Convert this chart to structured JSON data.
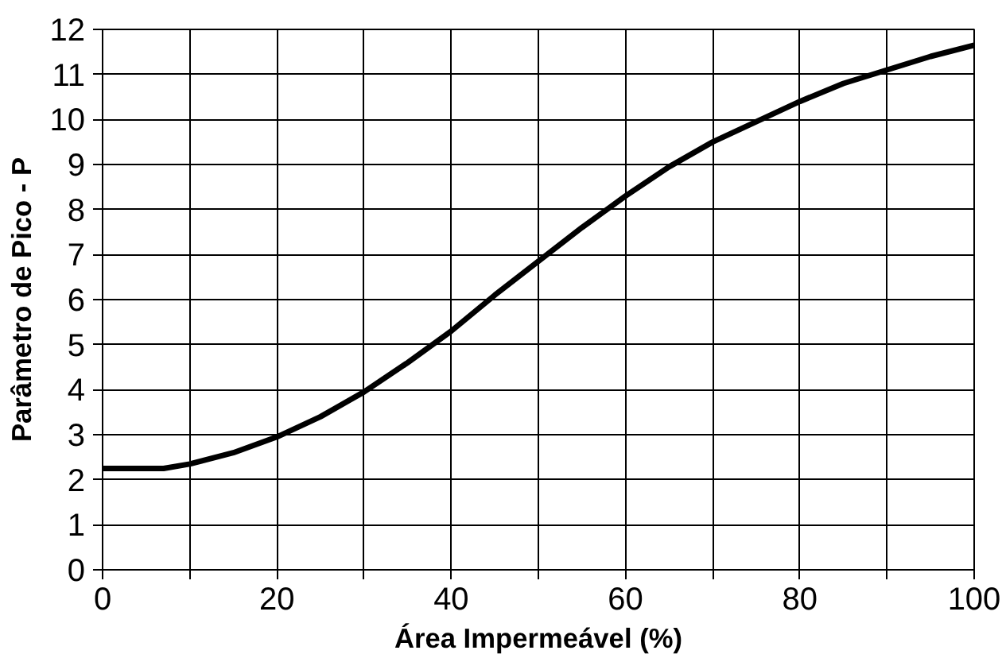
{
  "chart_data": {
    "type": "line",
    "xlabel": "Área Impermeável (%)",
    "ylabel": "Parâmetro de Pico - P",
    "x": [
      0,
      5,
      7,
      10,
      15,
      20,
      25,
      30,
      35,
      40,
      45,
      50,
      55,
      60,
      65,
      70,
      75,
      80,
      85,
      90,
      95,
      100
    ],
    "series": [
      {
        "color": "#000000",
        "values": [
          2.25,
          2.25,
          2.25,
          2.35,
          2.6,
          2.95,
          3.4,
          3.95,
          4.6,
          5.3,
          6.1,
          6.85,
          7.6,
          8.3,
          8.95,
          9.5,
          9.95,
          10.4,
          10.8,
          11.1,
          11.4,
          11.65
        ]
      }
    ],
    "xlim": [
      0,
      100
    ],
    "ylim": [
      0,
      12
    ],
    "xticks": [
      0,
      {
        "value": 10,
        "label": null
      },
      20,
      {
        "value": 30,
        "label": null
      },
      40,
      {
        "value": 50,
        "label": null
      },
      60,
      {
        "value": 70,
        "label": null
      },
      80,
      {
        "value": 90,
        "label": null
      },
      100
    ],
    "yticks": [
      0,
      1,
      2,
      3,
      4,
      5,
      6,
      7,
      8,
      9,
      10,
      11,
      12
    ],
    "grid": true,
    "marker": "none",
    "line_style": "solid"
  }
}
